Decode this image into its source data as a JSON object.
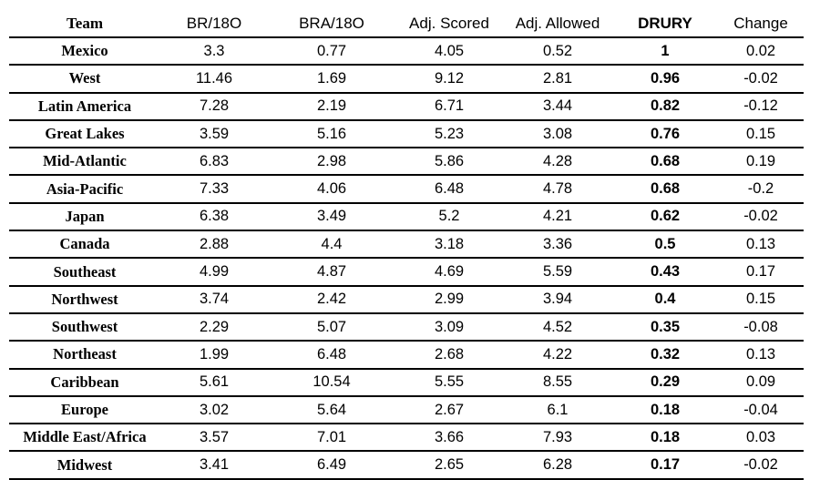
{
  "columns": [
    "Team",
    "BR/18O",
    "BRA/18O",
    "Adj. Scored",
    "Adj. Allowed",
    "DRURY",
    "Change"
  ],
  "rows": [
    [
      "Mexico",
      "3.3",
      "0.77",
      "4.05",
      "0.52",
      "1",
      "0.02"
    ],
    [
      "West",
      "11.46",
      "1.69",
      "9.12",
      "2.81",
      "0.96",
      "-0.02"
    ],
    [
      "Latin America",
      "7.28",
      "2.19",
      "6.71",
      "3.44",
      "0.82",
      "-0.12"
    ],
    [
      "Great Lakes",
      "3.59",
      "5.16",
      "5.23",
      "3.08",
      "0.76",
      "0.15"
    ],
    [
      "Mid-Atlantic",
      "6.83",
      "2.98",
      "5.86",
      "4.28",
      "0.68",
      "0.19"
    ],
    [
      "Asia-Pacific",
      "7.33",
      "4.06",
      "6.48",
      "4.78",
      "0.68",
      "-0.2"
    ],
    [
      "Japan",
      "6.38",
      "3.49",
      "5.2",
      "4.21",
      "0.62",
      "-0.02"
    ],
    [
      "Canada",
      "2.88",
      "4.4",
      "3.18",
      "3.36",
      "0.5",
      "0.13"
    ],
    [
      "Southeast",
      "4.99",
      "4.87",
      "4.69",
      "5.59",
      "0.43",
      "0.17"
    ],
    [
      "Northwest",
      "3.74",
      "2.42",
      "2.99",
      "3.94",
      "0.4",
      "0.15"
    ],
    [
      "Southwest",
      "2.29",
      "5.07",
      "3.09",
      "4.52",
      "0.35",
      "-0.08"
    ],
    [
      "Northeast",
      "1.99",
      "6.48",
      "2.68",
      "4.22",
      "0.32",
      "0.13"
    ],
    [
      "Caribbean",
      "5.61",
      "10.54",
      "5.55",
      "8.55",
      "0.29",
      "0.09"
    ],
    [
      "Europe",
      "3.02",
      "5.64",
      "2.67",
      "6.1",
      "0.18",
      "-0.04"
    ],
    [
      "Middle East/Africa",
      "3.57",
      "7.01",
      "3.66",
      "7.93",
      "0.18",
      "0.03"
    ],
    [
      "Midwest",
      "3.41",
      "6.49",
      "2.65",
      "6.28",
      "0.17",
      "-0.02"
    ]
  ]
}
